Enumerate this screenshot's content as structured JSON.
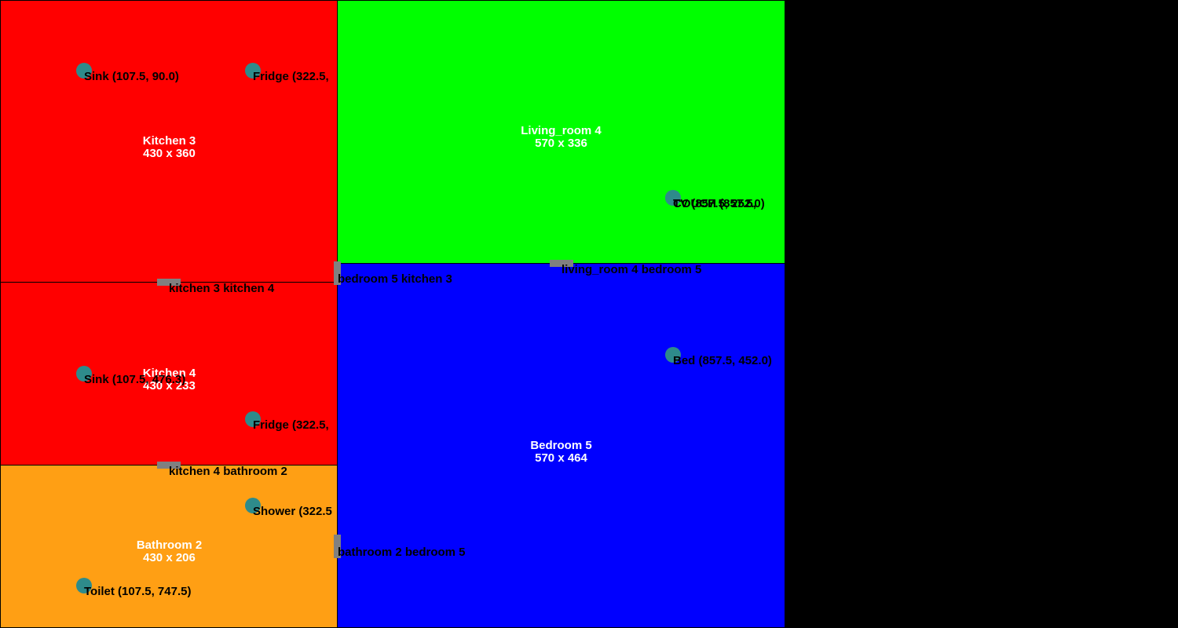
{
  "rooms": {
    "kitchen3": {
      "name": "Kitchen 3",
      "size": "430 x 360",
      "color": "#ff0000"
    },
    "kitchen4": {
      "name": "Kitchen 4",
      "size": "430 x 233",
      "color": "#ff0000"
    },
    "bathroom2": {
      "name": "Bathroom 2",
      "size": "430 x 206",
      "color": "#ff9f14"
    },
    "living4": {
      "name": "Living_room 4",
      "size": "570 x 336",
      "color": "#00ff00"
    },
    "bedroom5": {
      "name": "Bedroom 5",
      "size": "570 x 464",
      "color": "#0000ff"
    }
  },
  "fixtures": {
    "k3_sink": "Sink (107.5, 90.0)",
    "k3_fridge": "Fridge (322.5,",
    "k4_sink": "Sink (107.5, 476.3)",
    "k4_fridge": "Fridge (322.5,",
    "b2_shower": "Shower (322.5",
    "b2_toilet": "Toilet (107.5, 747.5)",
    "lr_couch": "COUCH (857.5,",
    "lr_tv": "TV (857.5, 252.0)",
    "br_bed": "Bed (857.5, 452.0)"
  },
  "doors": {
    "kitchen3_kitchen4": "kitchen 3 kitchen 4",
    "bedroom5_kitchen3": "bedroom 5 kitchen 3",
    "livingroom4_bedroom5": "living_room 4 bedroom 5",
    "kitchen4_bathroom2": "kitchen 4 bathroom 2",
    "bathroom2_bedroom5": "bathroom 2 bedroom 5"
  },
  "colors": {
    "door": "#808080",
    "fixture": "#2e8b8b",
    "background": "#000000"
  }
}
